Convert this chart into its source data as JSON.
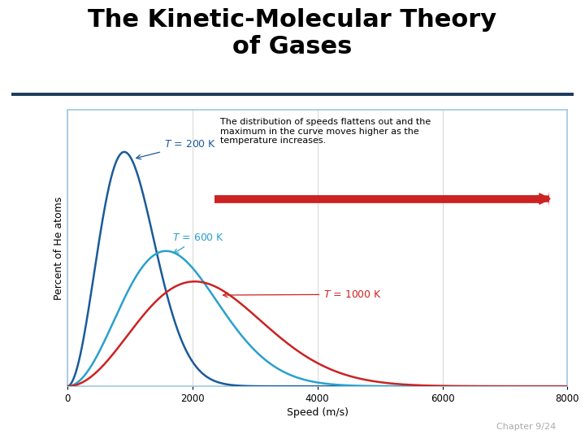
{
  "title_line1": "The Kinetic-Molecular Theory",
  "title_line2": "of Gases",
  "title_fontsize": 22,
  "title_fontweight": "bold",
  "chapter_text": "Chapter 9/24",
  "chapter_fontsize": 8,
  "chapter_color": "#aaaaaa",
  "bg_color": "#ffffff",
  "header_line_color": "#1a3a5c",
  "plot_border_color": "#a0c8e0",
  "xlabel": "Speed (m/s)",
  "ylabel": "Percent of He atoms",
  "xlim": [
    0,
    8000
  ],
  "ylim": [
    0,
    1.18
  ],
  "grid_color": "#d0d0d0",
  "curve_200K_color": "#1a5a9a",
  "curve_600K_color": "#2aa0cc",
  "curve_1000K_color": "#cc2222",
  "T200": 200,
  "T600": 600,
  "T1000": 1000,
  "annotation_text": "The distribution of speeds flattens out and the\nmaximum in the curve moves higher as the\ntemperature increases.",
  "annotation_fontsize": 8.0,
  "label_fontsize": 9.0,
  "arrow_color": "#cc2222",
  "axis_fontsize": 9,
  "tick_fontsize": 8.5
}
